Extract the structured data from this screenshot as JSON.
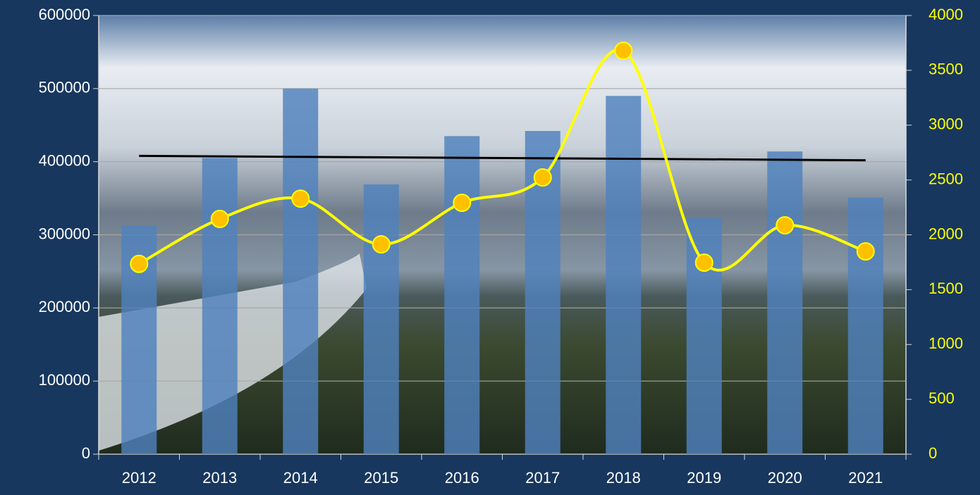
{
  "chart_data": {
    "type": "bar-line",
    "categories": [
      "2012",
      "2013",
      "2014",
      "2015",
      "2016",
      "2017",
      "2018",
      "2019",
      "2020",
      "2021"
    ],
    "series": [
      {
        "type": "bar",
        "color": "#4f81bd",
        "values": [
          313000,
          405000,
          500000,
          369000,
          435000,
          442000,
          490000,
          323000,
          414000,
          351000
        ]
      },
      {
        "type": "line",
        "color": "#ffff00",
        "marker_color": "#ffc000",
        "axis": "y2",
        "smooth": true,
        "values": [
          1735,
          2145,
          2330,
          1913,
          2292,
          2523,
          3679,
          1746,
          2087,
          1849
        ]
      }
    ],
    "trend": {
      "color": "#000000",
      "values": [
        408000,
        402000
      ]
    },
    "ylim": [
      0,
      600000
    ],
    "yticks": [
      0,
      100000,
      200000,
      300000,
      400000,
      500000,
      600000
    ],
    "y2lim": [
      0,
      4000
    ],
    "y2ticks": [
      0,
      500,
      1000,
      1500,
      2000,
      2500,
      3000,
      3500,
      4000
    ],
    "grid": true
  }
}
